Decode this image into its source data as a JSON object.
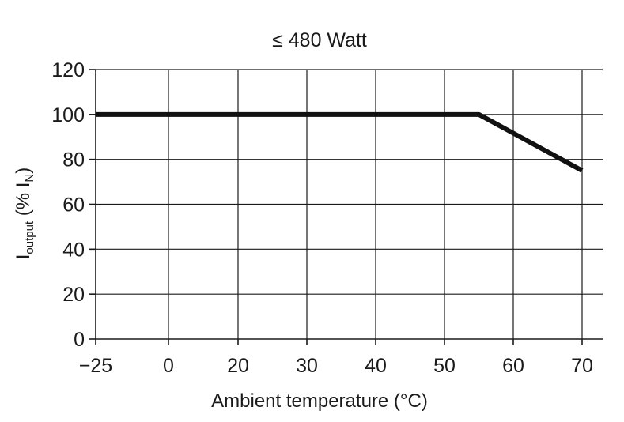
{
  "chart_data": {
    "type": "line",
    "title": "≤ 480 Watt",
    "xlabel": "Ambient temperature (°C)",
    "ylabel": {
      "main": "I",
      "sub": "output",
      "mid": " (% I",
      "sub2": "N",
      "end": ")"
    },
    "x_ticks": [
      "−25",
      "0",
      "20",
      "30",
      "40",
      "50",
      "60",
      "70"
    ],
    "y_ticks": [
      "0",
      "20",
      "40",
      "60",
      "80",
      "100",
      "120"
    ],
    "ylim": [
      0,
      120
    ],
    "grid": true,
    "series": [
      {
        "x": [
          -25,
          55,
          70
        ],
        "y": [
          100,
          100,
          75
        ]
      }
    ]
  }
}
